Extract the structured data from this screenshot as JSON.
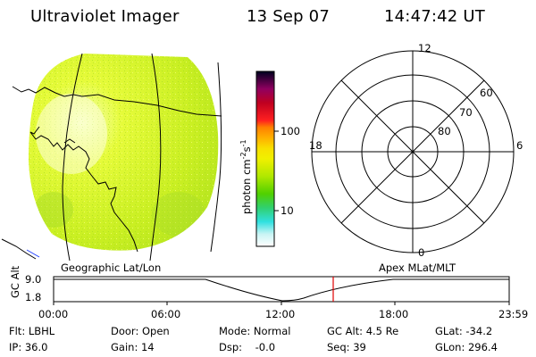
{
  "header": {
    "instrument": "Ultraviolet Imager",
    "date": "13 Sep 07",
    "time": "14:47:42 UT"
  },
  "colorbar": {
    "unit_label": "photon cm",
    "unit_sup1": "-2",
    "unit_mid": "s",
    "unit_sup2": "-1",
    "tick_100": "100",
    "tick_10": "10"
  },
  "polar": {
    "mlt_12": "12",
    "mlt_18": "18",
    "mlt_6": "6",
    "mlt_0": "0",
    "lat_60": "60",
    "lat_70": "70",
    "lat_80": "80"
  },
  "coords": {
    "left_label": "Geographic Lat/Lon",
    "right_label": "Apex MLat/MLT"
  },
  "timeline": {
    "axis_label": "GC Alt",
    "y_top": "9.0",
    "y_bottom": "1.8",
    "ticks": [
      "00:00",
      "06:00",
      "12:00",
      "18:00",
      "23:59"
    ]
  },
  "status": {
    "flt": "Flt: LBHL",
    "door": "Door: Open",
    "mode": "Mode: Normal",
    "gc_alt": "GC Alt: 4.5 Re",
    "glat": "GLat: -34.2",
    "ip": "IP: 36.0",
    "gain": "Gain: 14",
    "dsp": "Dsp:    -0.0",
    "seq": "Seq: 39",
    "glon": "GLon: 296.4"
  },
  "colors": {
    "cursor_red": "#e00000",
    "coast_blue": "#2040ff"
  }
}
